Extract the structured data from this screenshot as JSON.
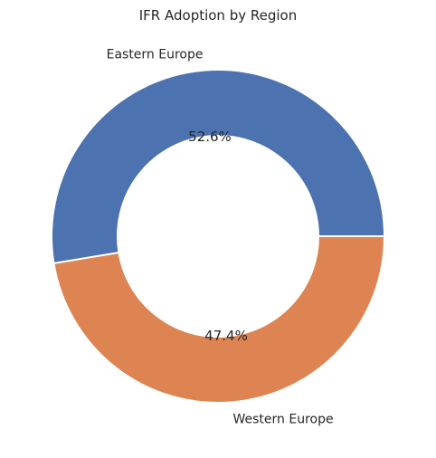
{
  "chart_data": {
    "type": "pie",
    "variant": "donut",
    "title": "IFR Adoption by Region",
    "slices": [
      {
        "label": "Eastern Europe",
        "value": 52.6,
        "pct_label": "52.6%",
        "color": "#4c72b0"
      },
      {
        "label": "Western Europe",
        "value": 47.4,
        "pct_label": "47.4%",
        "color": "#dd8452"
      }
    ],
    "legend": "none"
  }
}
